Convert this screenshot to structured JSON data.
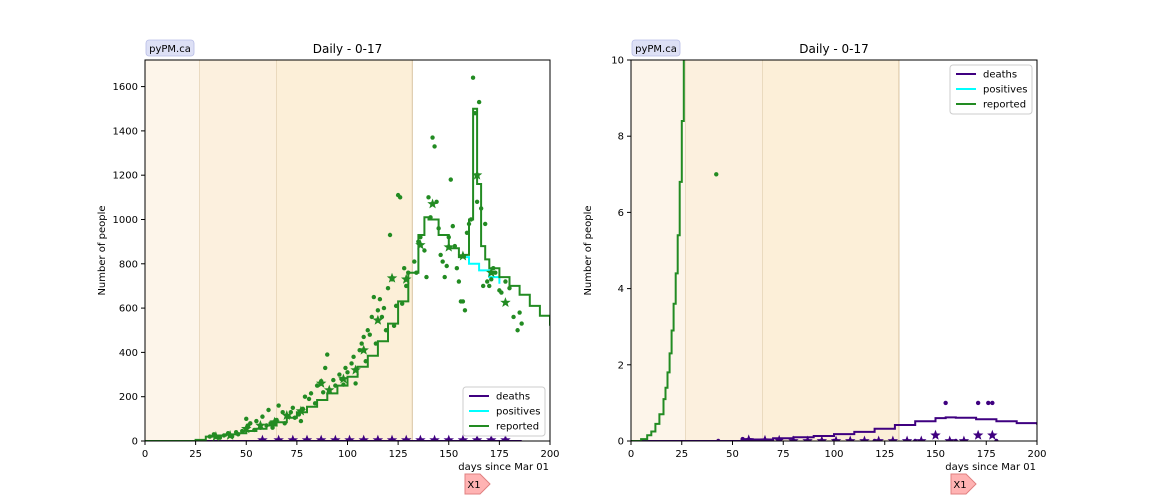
{
  "chart_data": [
    {
      "type": "line",
      "title": "Daily - 0-17",
      "badge": "pyPM.ca",
      "xlabel": "days since Mar 01",
      "ylabel": "Number of people",
      "xlim": [
        0,
        200
      ],
      "ylim": [
        0,
        1720
      ],
      "x_ticks": [
        0,
        25,
        50,
        75,
        100,
        125,
        150,
        175,
        200
      ],
      "y_ticks": [
        0,
        200,
        400,
        600,
        800,
        1000,
        1200,
        1400,
        1600
      ],
      "grid": false,
      "legend_placement": "lower-right",
      "shaded_periods": [
        {
          "x": [
            0,
            27
          ],
          "color": "#fdf5ea"
        },
        {
          "x": [
            27,
            65
          ],
          "color": "#fcf0de"
        },
        {
          "x": [
            65,
            132
          ],
          "color": "#fcefd8"
        }
      ],
      "series": [
        {
          "name": "deaths",
          "color": "#3f0080",
          "style": "step",
          "x": [
            0,
            50,
            100,
            150,
            186
          ],
          "y": [
            0,
            0,
            0,
            0,
            0
          ],
          "star_markers": [
            [
              58,
              4
            ],
            [
              66,
              4
            ],
            [
              73,
              4
            ],
            [
              80,
              4
            ],
            [
              87,
              4
            ],
            [
              94,
              4
            ],
            [
              101,
              4
            ],
            [
              108,
              4
            ],
            [
              115,
              4
            ],
            [
              122,
              4
            ],
            [
              129,
              4
            ],
            [
              136,
              4
            ],
            [
              143,
              4
            ],
            [
              150,
              4
            ],
            [
              157,
              4
            ],
            [
              164,
              4
            ],
            [
              171,
              4
            ],
            [
              178,
              4
            ]
          ]
        },
        {
          "name": "positives",
          "color": "#00ffff",
          "style": "step",
          "x": [
            155,
            160,
            165,
            170,
            175
          ],
          "y": [
            830,
            800,
            770,
            740,
            710
          ]
        },
        {
          "name": "reported",
          "color": "#228b22",
          "style": "step",
          "x": [
            0,
            20,
            25,
            30,
            35,
            40,
            45,
            50,
            55,
            60,
            65,
            70,
            75,
            80,
            85,
            90,
            95,
            100,
            105,
            110,
            115,
            120,
            125,
            130,
            135,
            138,
            140,
            145,
            150,
            155,
            158,
            160,
            162,
            164,
            166,
            168,
            170,
            175,
            180,
            185,
            190,
            195,
            200
          ],
          "y": [
            0,
            0,
            5,
            20,
            25,
            30,
            35,
            45,
            55,
            70,
            85,
            105,
            130,
            155,
            185,
            215,
            250,
            290,
            335,
            385,
            450,
            530,
            630,
            760,
            930,
            1010,
            1000,
            930,
            870,
            830,
            840,
            1000,
            1500,
            1160,
            880,
            820,
            780,
            740,
            700,
            660,
            610,
            565,
            520
          ],
          "scatter": [
            [
              32,
              20
            ],
            [
              34,
              30
            ],
            [
              37,
              15
            ],
            [
              39,
              25
            ],
            [
              41,
              35
            ],
            [
              43,
              20
            ],
            [
              45,
              40
            ],
            [
              46,
              30
            ],
            [
              48,
              45
            ],
            [
              50,
              100
            ],
            [
              51,
              70
            ],
            [
              52,
              80
            ],
            [
              54,
              50
            ],
            [
              55,
              90
            ],
            [
              57,
              60
            ],
            [
              58,
              110
            ],
            [
              60,
              70
            ],
            [
              61,
              140
            ],
            [
              62,
              80
            ],
            [
              63,
              60
            ],
            [
              65,
              95
            ],
            [
              66,
              160
            ],
            [
              68,
              130
            ],
            [
              69,
              80
            ],
            [
              71,
              110
            ],
            [
              72,
              130
            ],
            [
              73,
              150
            ],
            [
              74,
              105
            ],
            [
              76,
              120
            ],
            [
              77,
              90
            ],
            [
              78,
              145
            ],
            [
              79,
              200
            ],
            [
              81,
              190
            ],
            [
              82,
              215
            ],
            [
              84,
              170
            ],
            [
              85,
              250
            ],
            [
              87,
              270
            ],
            [
              88,
              220
            ],
            [
              89,
              330
            ],
            [
              90,
              390
            ],
            [
              91,
              230
            ],
            [
              93,
              275
            ],
            [
              94,
              250
            ],
            [
              96,
              300
            ],
            [
              97,
              280
            ],
            [
              98,
              255
            ],
            [
              99,
              330
            ],
            [
              100,
              310
            ],
            [
              102,
              350
            ],
            [
              103,
              380
            ],
            [
              104,
              260
            ],
            [
              106,
              410
            ],
            [
              107,
              440
            ],
            [
              108,
              470
            ],
            [
              109,
              360
            ],
            [
              110,
              500
            ],
            [
              111,
              480
            ],
            [
              112,
              560
            ],
            [
              113,
              650
            ],
            [
              114,
              440
            ],
            [
              115,
              590
            ],
            [
              116,
              640
            ],
            [
              117,
              560
            ],
            [
              118,
              600
            ],
            [
              119,
              500
            ],
            [
              120,
              690
            ],
            [
              121,
              930
            ],
            [
              122,
              730
            ],
            [
              123,
              520
            ],
            [
              124,
              610
            ],
            [
              125,
              1110
            ],
            [
              126,
              1100
            ],
            [
              127,
              620
            ],
            [
              128,
              780
            ],
            [
              129,
              700
            ],
            [
              130,
              760
            ],
            [
              133,
              810
            ],
            [
              134,
              760
            ],
            [
              135,
              900
            ],
            [
              136,
              920
            ],
            [
              138,
              860
            ],
            [
              139,
              740
            ],
            [
              140,
              1100
            ],
            [
              141,
              1010
            ],
            [
              142,
              1370
            ],
            [
              143,
              1330
            ],
            [
              144,
              1080
            ],
            [
              145,
              960
            ],
            [
              146,
              840
            ],
            [
              147,
              810
            ],
            [
              148,
              740
            ],
            [
              149,
              790
            ],
            [
              150,
              920
            ],
            [
              151,
              1180
            ],
            [
              152,
              970
            ],
            [
              153,
              880
            ],
            [
              154,
              780
            ],
            [
              155,
              720
            ],
            [
              156,
              630
            ],
            [
              157,
              630
            ],
            [
              158,
              590
            ],
            [
              159,
              940
            ],
            [
              160,
              980
            ],
            [
              161,
              1000
            ],
            [
              162,
              1640
            ],
            [
              163,
              1480
            ],
            [
              164,
              1080
            ],
            [
              165,
              1530
            ],
            [
              166,
              1050
            ],
            [
              167,
              700
            ],
            [
              168,
              980
            ],
            [
              169,
              720
            ],
            [
              170,
              700
            ],
            [
              171,
              730
            ],
            [
              172,
              780
            ],
            [
              173,
              760
            ],
            [
              175,
              680
            ],
            [
              176,
              670
            ],
            [
              178,
              720
            ],
            [
              180,
              690
            ],
            [
              182,
              560
            ],
            [
              184,
              500
            ],
            [
              185,
              580
            ],
            [
              186,
              530
            ]
          ],
          "star_markers": [
            [
              35,
              20
            ],
            [
              42,
              25
            ],
            [
              50,
              55
            ],
            [
              57,
              70
            ],
            [
              64,
              85
            ],
            [
              70,
              115
            ],
            [
              77,
              135
            ],
            [
              87,
              260
            ],
            [
              91,
              230
            ],
            [
              98,
              280
            ],
            [
              104,
              320
            ],
            [
              108,
              410
            ],
            [
              115,
              545
            ],
            [
              122,
              735
            ],
            [
              129,
              730
            ],
            [
              136,
              885
            ],
            [
              142,
              1070
            ],
            [
              150,
              875
            ],
            [
              157,
              835
            ],
            [
              164,
              1200
            ],
            [
              171,
              760
            ],
            [
              178,
              625
            ]
          ]
        }
      ]
    },
    {
      "type": "line",
      "title": "Daily - 0-17",
      "badge": "pyPM.ca",
      "xlabel": "days since Mar 01",
      "ylabel": "Number of people",
      "xlim": [
        0,
        200
      ],
      "ylim": [
        0,
        10
      ],
      "x_ticks": [
        0,
        25,
        50,
        75,
        100,
        125,
        150,
        175,
        200
      ],
      "y_ticks": [
        0,
        2,
        4,
        6,
        8,
        10
      ],
      "grid": false,
      "legend_placement": "upper-right",
      "shaded_periods": [
        {
          "x": [
            0,
            27
          ],
          "color": "#fdf5ea"
        },
        {
          "x": [
            27,
            65
          ],
          "color": "#fcf0de"
        },
        {
          "x": [
            65,
            132
          ],
          "color": "#fcefd8"
        }
      ],
      "series": [
        {
          "name": "deaths",
          "color": "#3f0080",
          "style": "step",
          "x": [
            0,
            40,
            55,
            60,
            70,
            80,
            90,
            100,
            110,
            120,
            130,
            140,
            150,
            155,
            160,
            170,
            180,
            190,
            200
          ],
          "y": [
            0,
            0,
            0.02,
            0.04,
            0.07,
            0.1,
            0.13,
            0.18,
            0.24,
            0.32,
            0.42,
            0.52,
            0.6,
            0.62,
            0.61,
            0.57,
            0.52,
            0.47,
            0.43
          ],
          "scatter": [
            [
              55,
              0.05
            ],
            [
              155,
              1
            ],
            [
              171,
              1
            ],
            [
              176,
              1
            ],
            [
              178,
              1
            ],
            [
              43,
              0
            ],
            [
              60,
              0
            ],
            [
              80,
              0
            ],
            [
              100,
              0
            ],
            [
              120,
              0
            ],
            [
              140,
              0
            ],
            [
              160,
              0
            ],
            [
              180,
              0
            ]
          ],
          "star_markers": [
            [
              58,
              0.03
            ],
            [
              66,
              0.02
            ],
            [
              73,
              0.02
            ],
            [
              80,
              0
            ],
            [
              87,
              0
            ],
            [
              94,
              0
            ],
            [
              101,
              0
            ],
            [
              108,
              0
            ],
            [
              115,
              0
            ],
            [
              122,
              0
            ],
            [
              129,
              0
            ],
            [
              136,
              0
            ],
            [
              143,
              0
            ],
            [
              150,
              0.15
            ],
            [
              157,
              0
            ],
            [
              164,
              0
            ],
            [
              171,
              0.15
            ],
            [
              178,
              0.15
            ]
          ]
        },
        {
          "name": "positives",
          "color": "#00ffff",
          "style": "step",
          "x": [],
          "y": []
        },
        {
          "name": "reported",
          "color": "#228b22",
          "style": "step",
          "x": [
            0,
            5,
            8,
            10,
            12,
            14,
            16,
            17,
            18,
            19,
            20,
            21,
            22,
            23,
            24,
            25,
            26,
            27
          ],
          "y": [
            0,
            0.05,
            0.15,
            0.25,
            0.45,
            0.7,
            1.1,
            1.4,
            1.8,
            2.3,
            2.9,
            3.6,
            4.4,
            5.4,
            6.8,
            8.4,
            10.4,
            12.5
          ],
          "scatter": [
            [
              42,
              7
            ]
          ]
        }
      ]
    }
  ],
  "markers": [
    {
      "label": "X1"
    },
    {
      "label": "X1"
    }
  ]
}
